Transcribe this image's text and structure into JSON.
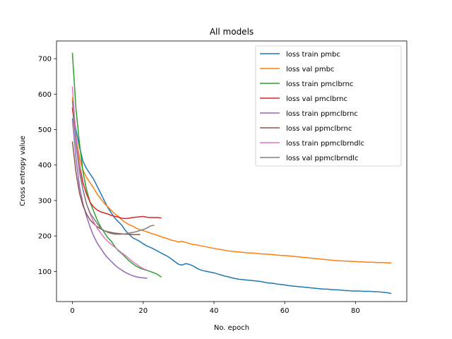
{
  "chart_data": {
    "type": "line",
    "title": "All models",
    "xlabel": "No. epoch",
    "ylabel": "Cross entropy value",
    "xlim": [
      -4.5,
      94.5
    ],
    "ylim": [
      15,
      750
    ],
    "xticks": [
      0,
      20,
      40,
      60,
      80
    ],
    "yticks": [
      100,
      200,
      300,
      400,
      500,
      600,
      700
    ],
    "grid": false,
    "legend_position": "top-right",
    "series": [
      {
        "name": "loss train pmbc",
        "color": "#1f77b4",
        "values": [
          560,
          500,
          450,
          410,
          390,
          375,
          360,
          340,
          320,
          300,
          280,
          265,
          250,
          240,
          230,
          215,
          205,
          195,
          190,
          185,
          178,
          172,
          168,
          163,
          158,
          152,
          147,
          142,
          135,
          127,
          120,
          118,
          122,
          120,
          116,
          110,
          105,
          102,
          100,
          98,
          96,
          93,
          90,
          87,
          85,
          82,
          80,
          78,
          77,
          76,
          75,
          74,
          73,
          72,
          70,
          68,
          67,
          66,
          64,
          63,
          62,
          60,
          59,
          58,
          57,
          56,
          55,
          54,
          53,
          52,
          51,
          50,
          50,
          49,
          48,
          48,
          47,
          46,
          46,
          45,
          45,
          45,
          44,
          44,
          44,
          43,
          43,
          42,
          41,
          40,
          38
        ]
      },
      {
        "name": "loss val pmbc",
        "color": "#ff7f0e",
        "values": [
          590,
          480,
          420,
          385,
          365,
          350,
          335,
          318,
          305,
          292,
          282,
          272,
          262,
          255,
          245,
          238,
          232,
          228,
          222,
          218,
          215,
          212,
          208,
          205,
          202,
          198,
          195,
          192,
          188,
          186,
          183,
          185,
          182,
          179,
          176,
          175,
          173,
          171,
          169,
          167,
          165,
          163,
          162,
          160,
          158,
          157,
          156,
          155,
          154,
          153,
          152,
          152,
          151,
          150,
          149,
          149,
          148,
          147,
          146,
          145,
          145,
          144,
          143,
          142,
          141,
          140,
          139,
          138,
          137,
          136,
          135,
          134,
          133,
          132,
          131,
          130,
          130,
          129,
          129,
          128,
          128,
          127,
          127,
          126,
          126,
          126,
          125,
          125,
          125,
          124,
          124
        ]
      },
      {
        "name": "loss train pmclbrnc",
        "color": "#2ca02c",
        "values": [
          715,
          560,
          460,
          380,
          330,
          295,
          270,
          245,
          225,
          210,
          195,
          185,
          170,
          158,
          150,
          140,
          130,
          122,
          115,
          110,
          106,
          103,
          100,
          96,
          92,
          85
        ]
      },
      {
        "name": "loss val pmclbrnc",
        "color": "#d62728",
        "values": [
          560,
          470,
          400,
          350,
          318,
          295,
          282,
          273,
          268,
          265,
          262,
          258,
          255,
          253,
          250,
          249,
          250,
          252,
          253,
          254,
          255,
          253,
          252,
          252,
          252,
          251
        ]
      },
      {
        "name": "loss train ppmclbrnc",
        "color": "#9467bd",
        "values": [
          530,
          420,
          340,
          290,
          255,
          225,
          200,
          180,
          165,
          150,
          138,
          128,
          118,
          110,
          103,
          97,
          92,
          88,
          85,
          83,
          82,
          81
        ]
      },
      {
        "name": "loss val ppmclbrnc",
        "color": "#8c564b",
        "values": [
          465,
          380,
          320,
          285,
          262,
          245,
          235,
          226,
          220,
          215,
          212,
          210,
          208,
          207,
          206,
          205,
          205,
          204,
          204,
          204
        ]
      },
      {
        "name": "loss train ppmclbrndlc",
        "color": "#e377c2",
        "values": [
          620,
          480,
          390,
          330,
          290,
          262,
          240,
          222,
          208,
          195,
          185,
          176,
          168,
          160,
          152,
          145,
          136,
          128,
          121,
          114,
          108,
          104
        ]
      },
      {
        "name": "loss val ppmclbrndlc",
        "color": "#7f7f7f",
        "values": [
          580,
          460,
          380,
          330,
          290,
          265,
          250,
          235,
          222,
          215,
          210,
          207,
          205,
          205,
          205,
          206,
          208,
          210,
          212,
          215,
          218,
          222,
          228,
          230
        ]
      }
    ]
  }
}
